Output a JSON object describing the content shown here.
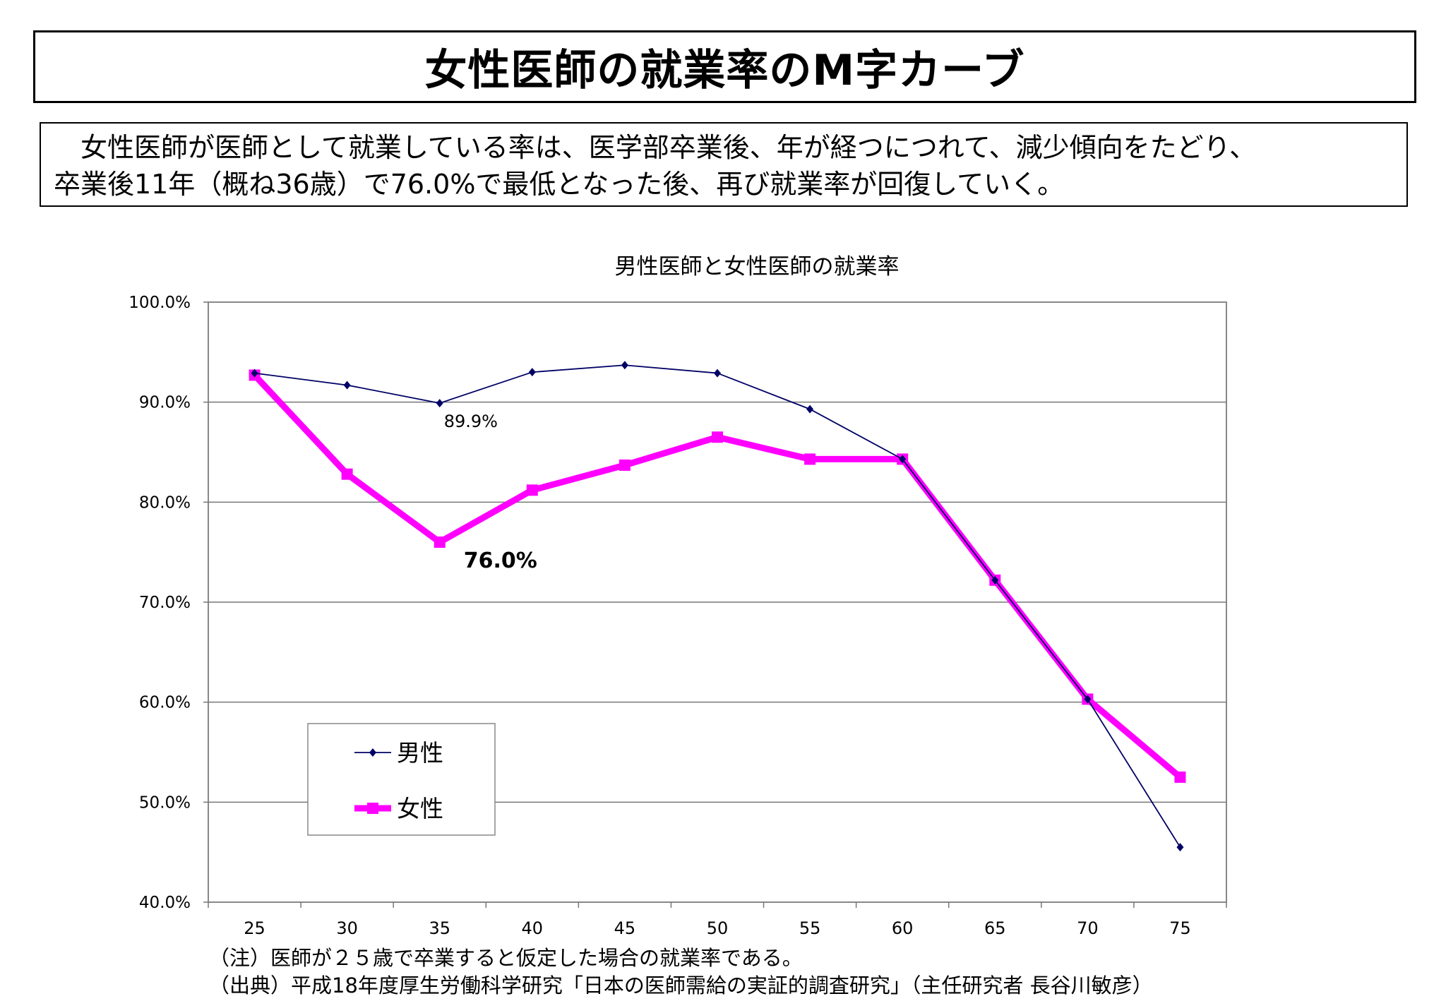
{
  "title": "女性医師の就業率のM字カーブ",
  "description": [
    "　女性医師が医師として就業している率は、医学部卒業後、年が経つにつれて、減少傾向をたどり、",
    "卒業後11年（概ね36歳）で76.0%で最低となった後、再び就業率が回復していく。"
  ],
  "notes": [
    "（注）医師が２５歳で卒業すると仮定した場合の就業率である。",
    "（出典）平成18年度厚生労働科学研究「日本の医師需給の実証的調査研究」（主任研究者 長谷川敏彦）"
  ],
  "chart_data": {
    "type": "line",
    "title": "男性医師と女性医師の就業率",
    "x": [
      25,
      30,
      35,
      40,
      45,
      50,
      55,
      60,
      65,
      70,
      75
    ],
    "ylim": [
      40,
      100
    ],
    "yticks": [
      "40.0%",
      "50.0%",
      "60.0%",
      "70.0%",
      "80.0%",
      "90.0%",
      "100.0%"
    ],
    "grid": true,
    "legend_placement": "bottom-left",
    "series": [
      {
        "name": "男性",
        "color": "#000066",
        "marker": "diamond",
        "values": [
          92.9,
          91.7,
          89.9,
          93.0,
          93.7,
          92.9,
          89.3,
          84.3,
          72.2,
          60.3,
          45.5
        ]
      },
      {
        "name": "女性",
        "color": "#ff00ff",
        "marker": "square",
        "values": [
          92.7,
          82.8,
          76.0,
          81.2,
          83.7,
          86.5,
          84.3,
          84.3,
          72.2,
          60.3,
          52.5
        ]
      }
    ],
    "annotations": [
      {
        "text": "89.9%",
        "series": 0,
        "x": 35,
        "bold": false
      },
      {
        "text": "76.0%",
        "series": 1,
        "x": 35,
        "bold": true
      }
    ]
  }
}
